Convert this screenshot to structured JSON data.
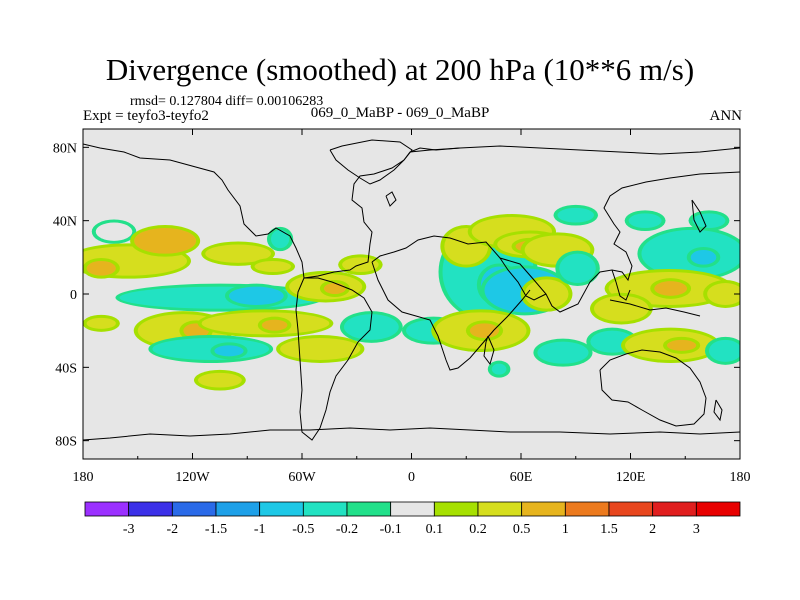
{
  "chart_data": {
    "type": "filled-contour-map",
    "title": "Divergence (smoothed) at 200 hPa (10**6 m/s)",
    "stats": "rmsd= 0.127804 diff= 0.00106283",
    "experiment": "Expt = teyfo3-teyfo2",
    "case": "069_0_MaBP - 069_0_MaBP",
    "season": "ANN",
    "x_ticks": [
      {
        "value": -180,
        "label": "180"
      },
      {
        "value": -120,
        "label": "120W"
      },
      {
        "value": -60,
        "label": "60W"
      },
      {
        "value": 0,
        "label": "0"
      },
      {
        "value": 60,
        "label": "60E"
      },
      {
        "value": 120,
        "label": "120E"
      },
      {
        "value": 180,
        "label": "180"
      }
    ],
    "y_ticks": [
      {
        "value": 80,
        "label": "80N"
      },
      {
        "value": 40,
        "label": "40N"
      },
      {
        "value": 0,
        "label": "0"
      },
      {
        "value": -40,
        "label": "40S"
      },
      {
        "value": -80,
        "label": "80S"
      }
    ],
    "xlim": [
      -180,
      180
    ],
    "ylim": [
      -90,
      90
    ],
    "colorbar": {
      "labels": [
        "-3",
        "-2",
        "-1.5",
        "-1",
        "-0.5",
        "-0.2",
        "-0.1",
        "0.1",
        "0.2",
        "0.5",
        "1",
        "1.5",
        "2",
        "3"
      ],
      "colors": [
        "#9b30ff",
        "#3c30e8",
        "#2a6ae8",
        "#1ea0e8",
        "#1ec8e6",
        "#22e2c2",
        "#22e08a",
        "#e6e6e6",
        "#a6e000",
        "#d6de1e",
        "#e6b41e",
        "#ec7a1e",
        "#e8461e",
        "#e01e1e",
        "#e80000"
      ]
    },
    "anomalies": [
      {
        "lon": -163,
        "lat": 34,
        "rx": 10,
        "ry": 5,
        "level": 7
      },
      {
        "lon": -155,
        "lat": 18,
        "rx": 32,
        "ry": 8,
        "level": 9
      },
      {
        "lon": -135,
        "lat": 29,
        "rx": 17,
        "ry": 7,
        "level": 10
      },
      {
        "lon": -170,
        "lat": 14,
        "rx": 8,
        "ry": 4,
        "level": 10
      },
      {
        "lon": -95,
        "lat": 22,
        "rx": 18,
        "ry": 5,
        "level": 9
      },
      {
        "lon": -72,
        "lat": 30,
        "rx": 5,
        "ry": 5,
        "level": 5
      },
      {
        "lon": -76,
        "lat": 15,
        "rx": 10,
        "ry": 3,
        "level": 9
      },
      {
        "lon": -105,
        "lat": -2,
        "rx": 55,
        "ry": 6,
        "level": 5
      },
      {
        "lon": -85,
        "lat": -1,
        "rx": 15,
        "ry": 5,
        "level": 4
      },
      {
        "lon": -47,
        "lat": 4,
        "rx": 20,
        "ry": 7,
        "level": 9
      },
      {
        "lon": -42,
        "lat": 3,
        "rx": 6,
        "ry": 3,
        "level": 10
      },
      {
        "lon": -170,
        "lat": -16,
        "rx": 8,
        "ry": 3,
        "level": 9
      },
      {
        "lon": -125,
        "lat": -20,
        "rx": 25,
        "ry": 9,
        "level": 9
      },
      {
        "lon": -118,
        "lat": -20,
        "rx": 7,
        "ry": 4,
        "level": 10
      },
      {
        "lon": -80,
        "lat": -16,
        "rx": 35,
        "ry": 6,
        "level": 9
      },
      {
        "lon": -75,
        "lat": -17,
        "rx": 7,
        "ry": 3,
        "level": 10
      },
      {
        "lon": -110,
        "lat": -30,
        "rx": 32,
        "ry": 6,
        "level": 5
      },
      {
        "lon": -100,
        "lat": -31,
        "rx": 8,
        "ry": 3,
        "level": 4
      },
      {
        "lon": -50,
        "lat": -30,
        "rx": 22,
        "ry": 6,
        "level": 9
      },
      {
        "lon": -105,
        "lat": -47,
        "rx": 12,
        "ry": 4,
        "level": 9
      },
      {
        "lon": -28,
        "lat": 16,
        "rx": 10,
        "ry": 4,
        "level": 9
      },
      {
        "lon": -22,
        "lat": -18,
        "rx": 15,
        "ry": 7,
        "level": 5
      },
      {
        "lon": 12,
        "lat": -20,
        "rx": 15,
        "ry": 6,
        "level": 5
      },
      {
        "lon": 42,
        "lat": 12,
        "rx": 25,
        "ry": 25,
        "level": 5
      },
      {
        "lon": 48,
        "lat": 5,
        "rx": 10,
        "ry": 10,
        "level": 4
      },
      {
        "lon": 62,
        "lat": 2,
        "rx": 22,
        "ry": 12,
        "level": 4
      },
      {
        "lon": 74,
        "lat": 0,
        "rx": 12,
        "ry": 8,
        "level": 9
      },
      {
        "lon": 30,
        "lat": 26,
        "rx": 12,
        "ry": 10,
        "level": 9
      },
      {
        "lon": 55,
        "lat": 34,
        "rx": 22,
        "ry": 8,
        "level": 9
      },
      {
        "lon": 65,
        "lat": 27,
        "rx": 18,
        "ry": 6,
        "level": 9
      },
      {
        "lon": 65,
        "lat": 26,
        "rx": 8,
        "ry": 3,
        "level": 10
      },
      {
        "lon": 80,
        "lat": 24,
        "rx": 18,
        "ry": 8,
        "level": 9
      },
      {
        "lon": 91,
        "lat": 14,
        "rx": 10,
        "ry": 8,
        "level": 5
      },
      {
        "lon": 90,
        "lat": 43,
        "rx": 10,
        "ry": 4,
        "level": 5
      },
      {
        "lon": 128,
        "lat": 40,
        "rx": 9,
        "ry": 4,
        "level": 5
      },
      {
        "lon": 163,
        "lat": 40,
        "rx": 9,
        "ry": 4,
        "level": 5
      },
      {
        "lon": 154,
        "lat": 22,
        "rx": 28,
        "ry": 13,
        "level": 5
      },
      {
        "lon": 160,
        "lat": 20,
        "rx": 7,
        "ry": 4,
        "level": 4
      },
      {
        "lon": 141,
        "lat": 3,
        "rx": 33,
        "ry": 9,
        "level": 9
      },
      {
        "lon": 142,
        "lat": 3,
        "rx": 9,
        "ry": 4,
        "level": 10
      },
      {
        "lon": 115,
        "lat": -8,
        "rx": 15,
        "ry": 7,
        "level": 9
      },
      {
        "lon": 172,
        "lat": 0,
        "rx": 10,
        "ry": 6,
        "level": 9
      },
      {
        "lon": 38,
        "lat": -20,
        "rx": 25,
        "ry": 10,
        "level": 9
      },
      {
        "lon": 40,
        "lat": -20,
        "rx": 8,
        "ry": 4,
        "level": 10
      },
      {
        "lon": 48,
        "lat": -41,
        "rx": 4,
        "ry": 3,
        "level": 5
      },
      {
        "lon": 83,
        "lat": -32,
        "rx": 14,
        "ry": 6,
        "level": 5
      },
      {
        "lon": 110,
        "lat": -26,
        "rx": 12,
        "ry": 6,
        "level": 5
      },
      {
        "lon": 142,
        "lat": -28,
        "rx": 25,
        "ry": 8,
        "level": 9
      },
      {
        "lon": 148,
        "lat": -28,
        "rx": 8,
        "ry": 3,
        "level": 10
      },
      {
        "lon": 172,
        "lat": -31,
        "rx": 9,
        "ry": 6,
        "level": 5
      }
    ]
  }
}
